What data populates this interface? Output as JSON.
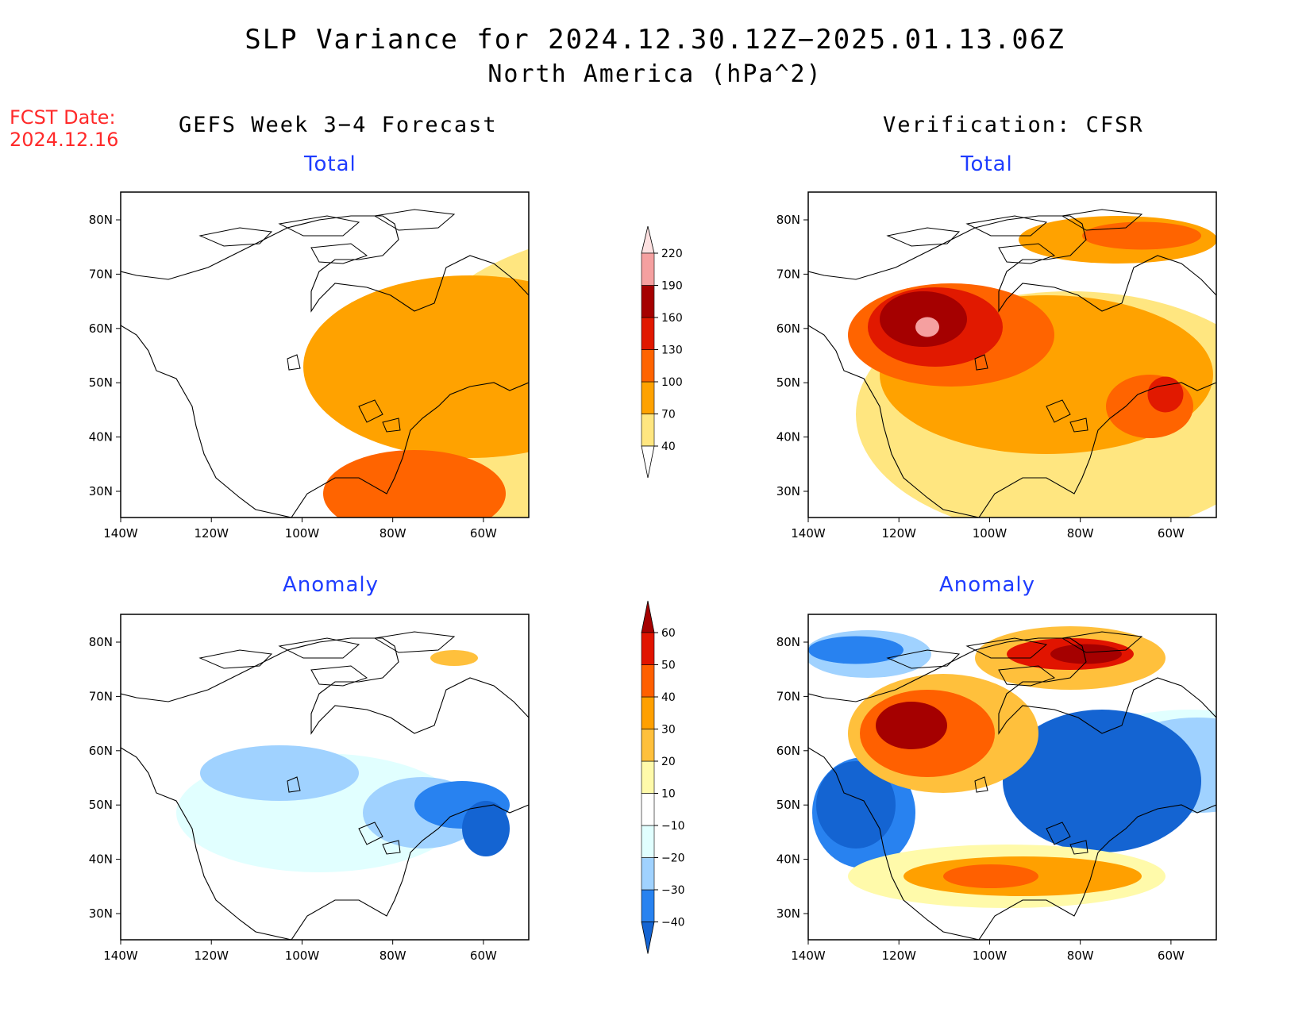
{
  "title": "SLP Variance for 2024.12.30.12Z−2025.01.13.06Z",
  "subtitle": "North America (hPa^2)",
  "fcst_date_label": "FCST Date:",
  "fcst_date_value": "2024.12.16",
  "left_column_title": "GEFS Week 3−4 Forecast",
  "right_column_title": "Verification: CFSR",
  "lon_ticks": [
    "140W",
    "120W",
    "100W",
    "80W",
    "60W"
  ],
  "lat_ticks": [
    "80N",
    "70N",
    "60N",
    "50N",
    "40N",
    "30N"
  ],
  "colors": {
    "total": [
      "#ffe680",
      "#ffa200",
      "#ff6400",
      "#e11900",
      "#a50000",
      "#f5a0a0",
      "#fde0e0"
    ],
    "anomaly": [
      "#1464d2",
      "#2882f0",
      "#a0d2ff",
      "#e1ffff",
      "#ffffff",
      "#fffaaa",
      "#ffc03c",
      "#ffa000",
      "#ff6000",
      "#e11400",
      "#a50000"
    ]
  },
  "panels": [
    {
      "id": "forecast-total",
      "label": "Total",
      "type": "total",
      "blobs": [
        [
          0,
          650,
          250,
          600,
          400
        ],
        [
          1,
          440,
          220,
          420,
          230
        ],
        [
          2,
          370,
          380,
          230,
          110
        ],
        [
          2,
          580,
          360,
          130,
          260
        ],
        [
          3,
          590,
          380,
          85,
          190
        ],
        [
          4,
          608,
          345,
          40,
          120
        ],
        [
          5,
          612,
          430,
          35,
          55
        ]
      ]
    },
    {
      "id": "verification-total",
      "label": "Total",
      "type": "total",
      "blobs": [
        [
          0,
          330,
          280,
          540,
          310
        ],
        [
          1,
          300,
          230,
          420,
          200
        ],
        [
          2,
          180,
          180,
          260,
          130
        ],
        [
          3,
          160,
          170,
          170,
          100
        ],
        [
          4,
          145,
          160,
          110,
          70
        ],
        [
          5,
          150,
          170,
          30,
          25
        ],
        [
          1,
          390,
          60,
          250,
          60
        ],
        [
          2,
          420,
          55,
          150,
          35
        ],
        [
          2,
          430,
          270,
          110,
          80
        ],
        [
          3,
          450,
          255,
          45,
          45
        ]
      ]
    },
    {
      "id": "forecast-anomaly",
      "label": "Anomaly",
      "type": "anomaly",
      "blobs": [
        [
          3,
          250,
          250,
          360,
          150
        ],
        [
          2,
          200,
          200,
          200,
          70
        ],
        [
          2,
          380,
          250,
          150,
          90
        ],
        [
          1,
          430,
          240,
          120,
          60
        ],
        [
          0,
          460,
          270,
          60,
          70
        ],
        [
          6,
          420,
          55,
          60,
          20
        ]
      ]
    },
    {
      "id": "verification-anomaly",
      "label": "Anomaly",
      "type": "anomaly",
      "blobs": [
        [
          3,
          480,
          170,
          260,
          100
        ],
        [
          2,
          490,
          190,
          230,
          120
        ],
        [
          0,
          370,
          210,
          250,
          180
        ],
        [
          1,
          70,
          250,
          130,
          140
        ],
        [
          0,
          60,
          240,
          100,
          110
        ],
        [
          2,
          75,
          50,
          160,
          60
        ],
        [
          1,
          60,
          45,
          120,
          35
        ],
        [
          6,
          170,
          150,
          240,
          150
        ],
        [
          8,
          150,
          150,
          170,
          110
        ],
        [
          10,
          130,
          140,
          90,
          60
        ],
        [
          6,
          330,
          55,
          240,
          80
        ],
        [
          9,
          330,
          50,
          160,
          40
        ],
        [
          10,
          350,
          50,
          90,
          25
        ],
        [
          5,
          250,
          330,
          400,
          80
        ],
        [
          7,
          270,
          330,
          300,
          50
        ],
        [
          8,
          230,
          330,
          120,
          30
        ]
      ]
    }
  ],
  "total_colorbar": {
    "levels": [
      "40",
      "70",
      "100",
      "130",
      "160",
      "190",
      "220"
    ]
  },
  "anomaly_colorbar": {
    "levels": [
      "−40",
      "−30",
      "−20",
      "−10",
      "10",
      "20",
      "30",
      "40",
      "50",
      "60"
    ]
  }
}
